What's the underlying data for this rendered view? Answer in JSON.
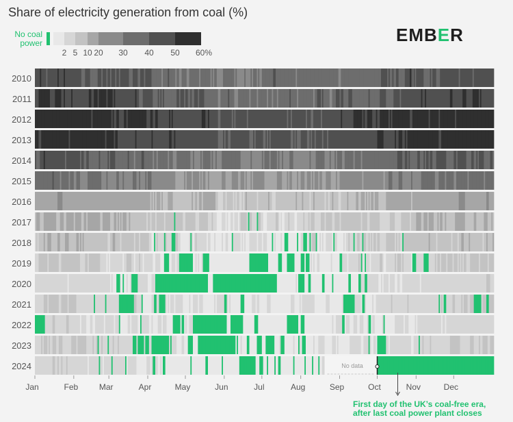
{
  "chart_data": {
    "type": "heatmap",
    "title": "Share of electricity generation from coal (%)",
    "brand": {
      "prefix": "EMB",
      "accent": "E",
      "suffix": "R"
    },
    "legend": {
      "no_coal_label": "No coal power",
      "tick_labels": [
        "2",
        "5",
        "10",
        "20",
        "30",
        "40",
        "50",
        "60%"
      ],
      "bins": [
        {
          "min": 0,
          "max": 0,
          "color": "#21c170"
        },
        {
          "min": 0,
          "max": 2,
          "color": "#e8e8e8"
        },
        {
          "min": 2,
          "max": 5,
          "color": "#d6d6d6"
        },
        {
          "min": 5,
          "max": 10,
          "color": "#c3c3c3"
        },
        {
          "min": 10,
          "max": 20,
          "color": "#a6a6a6"
        },
        {
          "min": 20,
          "max": 30,
          "color": "#8a8a8a"
        },
        {
          "min": 30,
          "max": 40,
          "color": "#6d6d6d"
        },
        {
          "min": 40,
          "max": 50,
          "color": "#505050"
        },
        {
          "min": 50,
          "max": 60,
          "color": "#2f2f2f"
        }
      ]
    },
    "years": [
      {
        "year": "2010",
        "base": 38,
        "spread": 12,
        "zero_days": []
      },
      {
        "year": "2011",
        "base": 42,
        "spread": 12,
        "zero_days": []
      },
      {
        "year": "2012",
        "base": 50,
        "spread": 10,
        "zero_days": []
      },
      {
        "year": "2013",
        "base": 48,
        "spread": 10,
        "zero_days": []
      },
      {
        "year": "2014",
        "base": 36,
        "spread": 12,
        "zero_days": []
      },
      {
        "year": "2015",
        "base": 26,
        "spread": 12,
        "zero_days": []
      },
      {
        "year": "2016",
        "base": 12,
        "spread": 8,
        "zero_days": []
      },
      {
        "year": "2017",
        "base": 7,
        "spread": 6,
        "zero_days": [
          [
            111,
            111
          ],
          [
            170,
            170
          ],
          [
            177,
            177
          ]
        ]
      },
      {
        "year": "2018",
        "base": 5,
        "spread": 6,
        "zero_days": [
          [
            95,
            95
          ],
          [
            103,
            103
          ],
          [
            109,
            111
          ],
          [
            124,
            124
          ],
          [
            157,
            157
          ],
          [
            189,
            189
          ],
          [
            199,
            201
          ],
          [
            209,
            209
          ],
          [
            214,
            216
          ],
          [
            219,
            219
          ],
          [
            224,
            224
          ],
          [
            238,
            238
          ],
          [
            254,
            254
          ],
          [
            261,
            261
          ],
          [
            293,
            293
          ]
        ]
      },
      {
        "year": "2019",
        "base": 3,
        "spread": 5,
        "zero_days": [
          [
            103,
            106
          ],
          [
            115,
            125
          ],
          [
            134,
            138
          ],
          [
            171,
            185
          ],
          [
            194,
            196
          ],
          [
            201,
            206
          ],
          [
            212,
            214
          ],
          [
            216,
            218
          ],
          [
            243,
            244
          ],
          [
            260,
            260
          ],
          [
            263,
            263
          ],
          [
            301,
            303
          ],
          [
            310,
            313
          ]
        ]
      },
      {
        "year": "2020",
        "base": 2,
        "spread": 3,
        "zero_days": [
          [
            65,
            67
          ],
          [
            70,
            70
          ],
          [
            77,
            81
          ],
          [
            96,
            137
          ],
          [
            142,
            192
          ],
          [
            210,
            214
          ],
          [
            218,
            219
          ],
          [
            229,
            230
          ],
          [
            237,
            237
          ],
          [
            250,
            251
          ],
          [
            258,
            259
          ],
          [
            263,
            264
          ]
        ]
      },
      {
        "year": "2021",
        "base": 3,
        "spread": 3,
        "zero_days": [
          [
            47,
            47
          ],
          [
            56,
            56
          ],
          [
            67,
            69
          ],
          [
            70,
            78
          ],
          [
            85,
            85
          ],
          [
            95,
            96
          ],
          [
            99,
            103
          ],
          [
            151,
            152
          ],
          [
            164,
            166
          ],
          [
            246,
            254
          ],
          [
            261,
            262
          ],
          [
            322,
            322
          ],
          [
            326,
            327
          ],
          [
            350,
            355
          ],
          [
            360,
            361
          ]
        ]
      },
      {
        "year": "2022",
        "base": 2,
        "spread": 3,
        "zero_days": [
          [
            0,
            7
          ],
          [
            67,
            67
          ],
          [
            84,
            84
          ],
          [
            110,
            115
          ],
          [
            117,
            118
          ],
          [
            126,
            152
          ],
          [
            156,
            165
          ],
          [
            175,
            177
          ],
          [
            201,
            209
          ],
          [
            212,
            214
          ],
          [
            245,
            246
          ],
          [
            266,
            267
          ],
          [
            278,
            278
          ]
        ]
      },
      {
        "year": "2023",
        "base": 3,
        "spread": 3,
        "zero_days": [
          [
            50,
            50
          ],
          [
            58,
            58
          ],
          [
            78,
            80
          ],
          [
            82,
            86
          ],
          [
            88,
            90
          ],
          [
            93,
            106
          ],
          [
            108,
            108
          ],
          [
            122,
            125
          ],
          [
            130,
            159
          ],
          [
            161,
            161
          ],
          [
            169,
            170
          ],
          [
            177,
            180
          ],
          [
            184,
            190
          ],
          [
            196,
            198
          ],
          [
            210,
            210
          ],
          [
            213,
            215
          ],
          [
            266,
            266
          ],
          [
            273,
            279
          ],
          [
            306,
            306
          ]
        ]
      },
      {
        "year": "2024",
        "base": 2,
        "spread": 3,
        "zero_days": [
          [
            51,
            51
          ],
          [
            61,
            61
          ],
          [
            72,
            72
          ],
          [
            94,
            95
          ],
          [
            102,
            103
          ],
          [
            124,
            124
          ],
          [
            136,
            137
          ],
          [
            149,
            149
          ],
          [
            163,
            163
          ],
          [
            164,
            175
          ],
          [
            179,
            181
          ],
          [
            185,
            185
          ],
          [
            191,
            191
          ],
          [
            194,
            195
          ],
          [
            206,
            206
          ],
          [
            215,
            215
          ],
          [
            221,
            221
          ],
          [
            226,
            226
          ],
          [
            231,
            231
          ],
          [
            246,
            246
          ],
          [
            255,
            255
          ],
          [
            273,
            365
          ]
        ],
        "no_data_days": [
          231,
          272
        ],
        "no_data_label": "No data"
      }
    ],
    "months": [
      "Jan",
      "Feb",
      "Mar",
      "Apr",
      "May",
      "Jun",
      "Jul",
      "Aug",
      "Sep",
      "Oct",
      "Nov",
      "Dec"
    ],
    "month_start_days": [
      0,
      31,
      59,
      90,
      120,
      151,
      181,
      212,
      243,
      273,
      304,
      334
    ],
    "annotation": {
      "text_line1": "First day of the UK’s coal-free era,",
      "text_line2": "after last coal power plant closes",
      "day": 273
    }
  }
}
